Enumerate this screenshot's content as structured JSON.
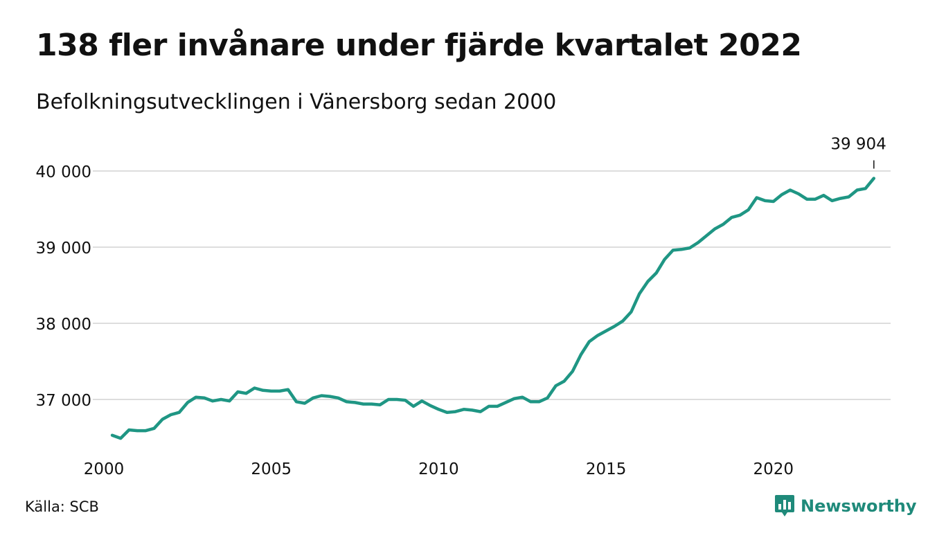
{
  "title": "138 fler invånare under fjärde kvartalet 2022",
  "subtitle": "Befolkningsutvecklingen i Vänersborg sedan 2000",
  "source": "Källa: SCB",
  "brand": {
    "name": "Newsworthy",
    "color": "#1f8a7a",
    "icon": "bar-chart-speech-bubble-icon"
  },
  "colors": {
    "line": "#1f9684",
    "grid": "#dddddd",
    "text": "#111111"
  },
  "chart_data": {
    "type": "line",
    "title": "138 fler invånare under fjärde kvartalet 2022",
    "subtitle": "Befolkningsutvecklingen i Vänersborg sedan 2000",
    "xlabel": "",
    "ylabel": "",
    "grid": true,
    "legend": "none",
    "xlim": [
      2000,
      2023.5
    ],
    "ylim": [
      36400,
      40200
    ],
    "x_ticks": [
      {
        "value": 2000,
        "label": "2000"
      },
      {
        "value": 2005,
        "label": "2005"
      },
      {
        "value": 2010,
        "label": "2010"
      },
      {
        "value": 2015,
        "label": "2015"
      },
      {
        "value": 2020,
        "label": "2020"
      }
    ],
    "y_ticks": [
      {
        "value": 37000,
        "label": "37 000"
      },
      {
        "value": 38000,
        "label": "38 000"
      },
      {
        "value": 39000,
        "label": "39 000"
      },
      {
        "value": 40000,
        "label": "40 000"
      }
    ],
    "annotations": [
      {
        "label": "39 904",
        "x": 2023.0,
        "y": 39904
      }
    ],
    "series": [
      {
        "name": "",
        "x": [
          2000.25,
          2000.5,
          2000.75,
          2001.0,
          2001.25,
          2001.5,
          2001.75,
          2002.0,
          2002.25,
          2002.5,
          2002.75,
          2003.0,
          2003.25,
          2003.5,
          2003.75,
          2004.0,
          2004.25,
          2004.5,
          2004.75,
          2005.0,
          2005.25,
          2005.5,
          2005.75,
          2006.0,
          2006.25,
          2006.5,
          2006.75,
          2007.0,
          2007.25,
          2007.5,
          2007.75,
          2008.0,
          2008.25,
          2008.5,
          2008.75,
          2009.0,
          2009.25,
          2009.5,
          2009.75,
          2010.0,
          2010.25,
          2010.5,
          2010.75,
          2011.0,
          2011.25,
          2011.5,
          2011.75,
          2012.0,
          2012.25,
          2012.5,
          2012.75,
          2013.0,
          2013.25,
          2013.5,
          2013.75,
          2014.0,
          2014.25,
          2014.5,
          2014.75,
          2015.0,
          2015.25,
          2015.5,
          2015.75,
          2016.0,
          2016.25,
          2016.5,
          2016.75,
          2017.0,
          2017.25,
          2017.5,
          2017.75,
          2018.0,
          2018.25,
          2018.5,
          2018.75,
          2019.0,
          2019.25,
          2019.5,
          2019.75,
          2020.0,
          2020.25,
          2020.5,
          2020.75,
          2021.0,
          2021.25,
          2021.5,
          2021.75,
          2022.0,
          2022.25,
          2022.5,
          2022.75,
          2023.0
        ],
        "values": [
          36530,
          36490,
          36600,
          36590,
          36590,
          36620,
          36740,
          36800,
          36830,
          36960,
          37030,
          37020,
          36980,
          37000,
          36980,
          37100,
          37080,
          37150,
          37120,
          37110,
          37110,
          37130,
          36970,
          36950,
          37020,
          37050,
          37040,
          37020,
          36970,
          36960,
          36940,
          36940,
          36930,
          37000,
          37000,
          36990,
          36910,
          36980,
          36920,
          36870,
          36830,
          36840,
          36870,
          36860,
          36840,
          36910,
          36910,
          36960,
          37010,
          37030,
          36970,
          36970,
          37020,
          37180,
          37240,
          37370,
          37590,
          37760,
          37840,
          37900,
          37960,
          38030,
          38150,
          38390,
          38550,
          38660,
          38840,
          38960,
          38970,
          38990,
          39060,
          39150,
          39240,
          39300,
          39390,
          39420,
          39490,
          39650,
          39610,
          39600,
          39690,
          39750,
          39700,
          39630,
          39630,
          39680,
          39610,
          39640,
          39660,
          39750,
          39770,
          39904
        ]
      }
    ]
  }
}
